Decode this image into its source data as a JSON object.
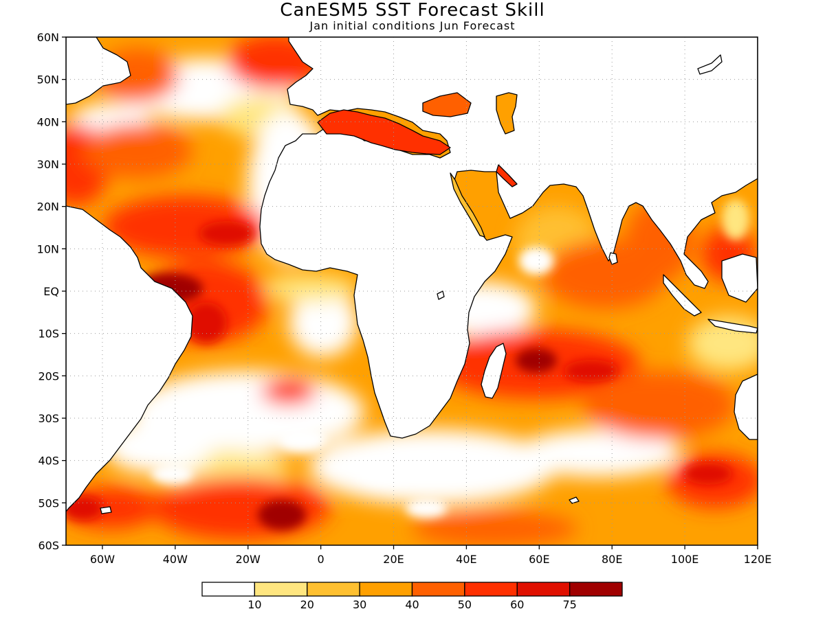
{
  "title": "CanESM5 SST Forecast Skill",
  "subtitle": "Jan initial conditions   Jun Forecast",
  "map": {
    "lon_range": [
      -70,
      120
    ],
    "lat_range": [
      -60,
      60
    ],
    "lat_ticks": [
      {
        "value": 60,
        "label": "60N"
      },
      {
        "value": 50,
        "label": "50N"
      },
      {
        "value": 40,
        "label": "40N"
      },
      {
        "value": 30,
        "label": "30N"
      },
      {
        "value": 20,
        "label": "20N"
      },
      {
        "value": 10,
        "label": "10N"
      },
      {
        "value": 0,
        "label": "EQ"
      },
      {
        "value": -10,
        "label": "10S"
      },
      {
        "value": -20,
        "label": "20S"
      },
      {
        "value": -30,
        "label": "30S"
      },
      {
        "value": -40,
        "label": "40S"
      },
      {
        "value": -50,
        "label": "50S"
      },
      {
        "value": -60,
        "label": "60S"
      }
    ],
    "lon_ticks": [
      {
        "value": -60,
        "label": "60W"
      },
      {
        "value": -40,
        "label": "40W"
      },
      {
        "value": -20,
        "label": "20W"
      },
      {
        "value": 0,
        "label": "0"
      },
      {
        "value": 20,
        "label": "20E"
      },
      {
        "value": 40,
        "label": "40E"
      },
      {
        "value": 60,
        "label": "60E"
      },
      {
        "value": 80,
        "label": "80E"
      },
      {
        "value": 100,
        "label": "100E"
      },
      {
        "value": 120,
        "label": "120E"
      }
    ],
    "grid": "dotted"
  },
  "colorbar": {
    "colors": [
      "#ffffff",
      "#ffe680",
      "#ffc030",
      "#ffa000",
      "#ff6000",
      "#ff3000",
      "#e01000",
      "#a00000"
    ],
    "labels": [
      "10",
      "20",
      "30",
      "40",
      "50",
      "60",
      "75"
    ]
  }
}
